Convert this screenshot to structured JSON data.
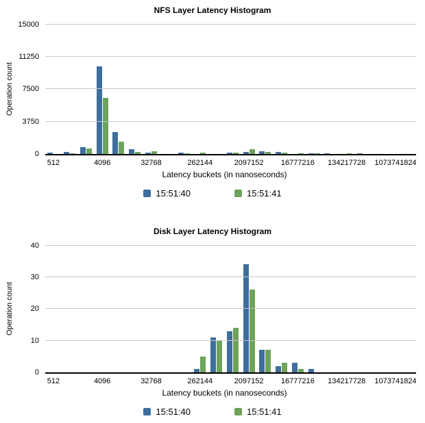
{
  "page": {
    "background": "#ffffff",
    "colors": {
      "grid": "#c8c8c8",
      "axis": "#000000",
      "text": "#000000"
    }
  },
  "chart_data": [
    {
      "type": "bar",
      "title": "NFS Layer Latency Histogram",
      "xlabel": "Latency buckets (in nanoseconds)",
      "ylabel": "Operation count",
      "ylim": [
        0,
        15000
      ],
      "yticks": [
        0,
        3750,
        7500,
        11250,
        15000
      ],
      "grid": "horizontal",
      "legend_position": "bottom",
      "categories": [
        "512",
        "1024",
        "2048",
        "4096",
        "8192",
        "16384",
        "32768",
        "65536",
        "131072",
        "262144",
        "524288",
        "1048576",
        "2097152",
        "4194304",
        "8388608",
        "16777216",
        "33554432",
        "67108864",
        "134217728",
        "268435456",
        "536870912",
        "1073741824"
      ],
      "xtick_indices": [
        0,
        3,
        6,
        9,
        12,
        15,
        18,
        21
      ],
      "xtick_labels": [
        "512",
        "4096",
        "32768",
        "262144",
        "2097152",
        "16777216",
        "134217728",
        "1073741824"
      ],
      "series": [
        {
          "name": "15:51:40",
          "color": "#3e6e9e",
          "values": [
            150,
            260,
            830,
            10100,
            2500,
            570,
            180,
            0,
            130,
            0,
            0,
            180,
            260,
            340,
            210,
            0,
            60,
            60,
            0,
            60,
            0,
            0
          ]
        },
        {
          "name": "15:51:41",
          "color": "#6da35a",
          "values": [
            0,
            100,
            620,
            6450,
            1420,
            260,
            310,
            0,
            100,
            130,
            0,
            180,
            570,
            210,
            180,
            50,
            50,
            0,
            50,
            0,
            0,
            0
          ]
        }
      ]
    },
    {
      "type": "bar",
      "title": "Disk Layer Latency Histogram",
      "xlabel": "Latency buckets (in nanoseconds)",
      "ylabel": "Operation count",
      "ylim": [
        0,
        40
      ],
      "yticks": [
        0,
        10,
        20,
        30,
        40
      ],
      "grid": "horizontal",
      "legend_position": "bottom",
      "categories": [
        "512",
        "1024",
        "2048",
        "4096",
        "8192",
        "16384",
        "32768",
        "65536",
        "131072",
        "262144",
        "524288",
        "1048576",
        "2097152",
        "4194304",
        "8388608",
        "16777216",
        "33554432",
        "67108864",
        "134217728",
        "268435456",
        "536870912",
        "1073741824"
      ],
      "xtick_indices": [
        0,
        3,
        6,
        9,
        12,
        15,
        18,
        21
      ],
      "xtick_labels": [
        "512",
        "4096",
        "32768",
        "262144",
        "2097152",
        "16777216",
        "134217728",
        "1073741824"
      ],
      "series": [
        {
          "name": "15:51:40",
          "color": "#3e6e9e",
          "values": [
            0,
            0,
            0,
            0,
            0,
            0,
            0,
            0,
            0,
            1,
            11,
            13,
            34,
            7,
            2,
            3,
            1,
            0,
            0,
            0,
            0,
            0
          ]
        },
        {
          "name": "15:51:41",
          "color": "#6da35a",
          "values": [
            0,
            0,
            0,
            0,
            0,
            0,
            0,
            0,
            0,
            5,
            10,
            14,
            26,
            7,
            3,
            1,
            0,
            0,
            0,
            0,
            0,
            0
          ]
        }
      ]
    }
  ]
}
